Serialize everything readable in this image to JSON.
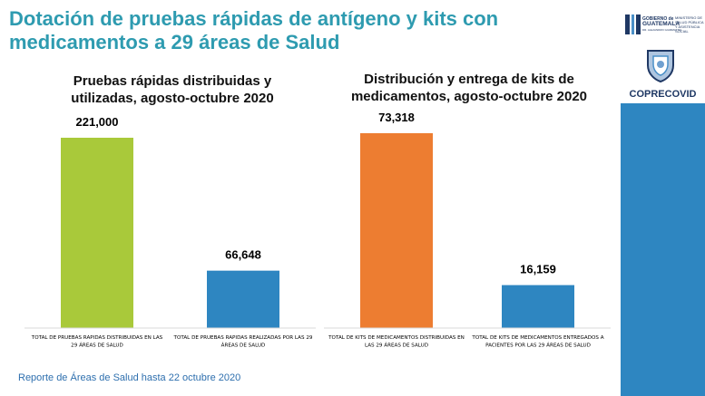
{
  "title": "Dotación de pruebas rápidas de antígeno y kits con medicamentos a 29 áreas de Salud",
  "footer": "Reporte de Áreas de Salud hasta 22 octubre 2020",
  "logo": {
    "gobierno_line1": "GOBIERNO",
    "gobierno_de": "de",
    "gobierno_line2": "GUATEMALA",
    "gobierno_tagline": "DR. ALEJANDRO GIAMMATTEI",
    "ministerio_line1": "MINISTERIO DE",
    "ministerio_line2": "SALUD PÚBLICA",
    "ministerio_line3": "Y ASISTENCIA",
    "ministerio_line4": "SOCIAL",
    "coprecovid": "COPRECOVID"
  },
  "colors": {
    "title": "#2E9BB0",
    "green": "#A9C93A",
    "blue": "#2E86C1",
    "orange": "#ED7D31",
    "side_panel": "#2E86C1"
  },
  "chart_data": [
    {
      "type": "bar",
      "title": "Pruebas rápidas distribuidas y utilizadas, agosto-octubre 2020",
      "categories": [
        "TOTAL DE PRUEBAS RAPIDAS DISTRIBUIDAS EN LAS 29 ÁREAS DE SALUD",
        "TOTAL DE PRUEBAS RAPIDAS REALIZADAS POR LAS 29 ÁREAS DE SALUD"
      ],
      "values": [
        221000,
        66648
      ],
      "value_labels": [
        "221,000",
        "66,648"
      ],
      "colors": [
        "#A9C93A",
        "#2E86C1"
      ],
      "ylim": [
        0,
        221000
      ],
      "grid": false,
      "legend": false
    },
    {
      "type": "bar",
      "title": "Distribución y entrega de kits de medicamentos, agosto-octubre 2020",
      "categories": [
        "TOTAL DE KITS DE MEDICAMENTOS DISTRIBUIDAS EN LAS 29 ÁREAS DE SALUD",
        "TOTAL DE KITS DE MEDICAMENTOS ENTREGADOS A PACIENTES POR LAS 29 ÁREAS DE SALUD"
      ],
      "values": [
        73318,
        16159
      ],
      "value_labels": [
        "73,318",
        "16,159"
      ],
      "colors": [
        "#ED7D31",
        "#2E86C1"
      ],
      "ylim": [
        0,
        73318
      ],
      "grid": false,
      "legend": false
    }
  ]
}
